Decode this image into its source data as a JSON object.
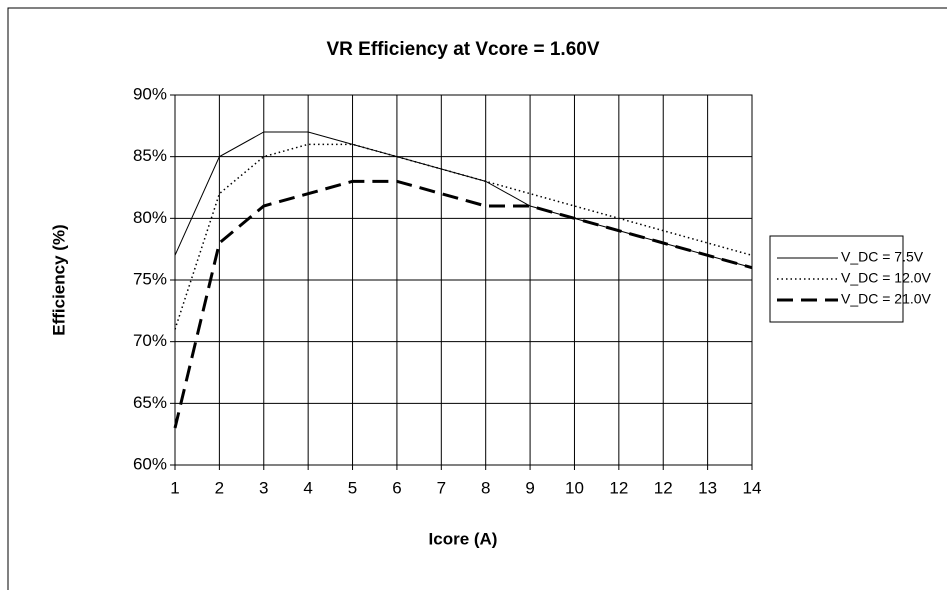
{
  "chart_data": {
    "type": "line",
    "title": "VR Efficiency at Vcore = 1.60V",
    "x_label": "Icore (A)",
    "y_label": "Efficiency (%)",
    "categories": [
      "1",
      "2",
      "3",
      "4",
      "5",
      "6",
      "7",
      "8",
      "9",
      "10",
      "12",
      "12",
      "13",
      "14"
    ],
    "ylim": [
      60,
      90
    ],
    "yticks": [
      {
        "value": 60,
        "label": "60%"
      },
      {
        "value": 65,
        "label": "65%"
      },
      {
        "value": 70,
        "label": "70%"
      },
      {
        "value": 75,
        "label": "75%"
      },
      {
        "value": 80,
        "label": "80%"
      },
      {
        "value": 85,
        "label": "85%"
      },
      {
        "value": 90,
        "label": "90%"
      }
    ],
    "grid": true,
    "legend": "right",
    "series": [
      {
        "name": "V_DC = 7.5V",
        "color": "#000000",
        "dash": "solid",
        "values": [
          77,
          85,
          87,
          87,
          86,
          85,
          84,
          83,
          81,
          80,
          79,
          78,
          77,
          76
        ]
      },
      {
        "name": "V_DC = 12.0V",
        "color": "#000000",
        "dash": "dotted",
        "values": [
          71,
          82,
          85,
          86,
          86,
          85,
          84,
          83,
          82,
          81,
          80,
          79,
          78,
          77
        ]
      },
      {
        "name": "V_DC = 21.0V",
        "color": "#000000",
        "dash": "dashed",
        "values": [
          63,
          78,
          81,
          82,
          83,
          83,
          82,
          81,
          81,
          80,
          79,
          78,
          77,
          76
        ]
      }
    ]
  }
}
